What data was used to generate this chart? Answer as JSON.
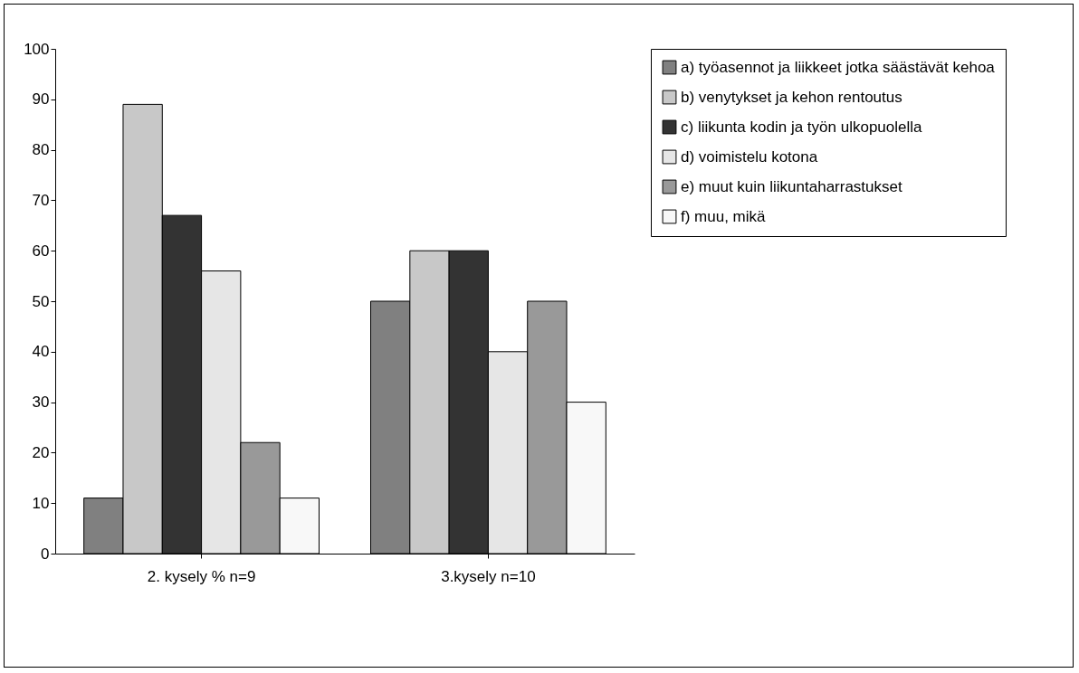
{
  "chart_data": {
    "type": "bar",
    "categories": [
      "2. kysely %      n=9",
      "3.kysely    n=10"
    ],
    "series": [
      {
        "name": "a) työasennot ja liikkeet jotka säästävät kehoa",
        "color": "#808080",
        "values": [
          11,
          50
        ]
      },
      {
        "name": "b) venytykset ja kehon rentoutus",
        "color": "#c8c8c8",
        "values": [
          89,
          60
        ]
      },
      {
        "name": "c) liikunta kodin ja työn ulkopuolella",
        "color": "#333333",
        "values": [
          67,
          60
        ]
      },
      {
        "name": "d) voimistelu kotona",
        "color": "#e6e6e6",
        "values": [
          56,
          40
        ]
      },
      {
        "name": "e) muut kuin liikuntaharrastukset",
        "color": "#999999",
        "values": [
          22,
          50
        ]
      },
      {
        "name": "f) muu, mikä",
        "color": "#f8f8f8",
        "values": [
          11,
          30
        ]
      }
    ],
    "ylim": [
      0,
      100
    ],
    "yticks": [
      0,
      10,
      20,
      30,
      40,
      50,
      60,
      70,
      80,
      90,
      100
    ],
    "grid": false,
    "legend": "right"
  }
}
